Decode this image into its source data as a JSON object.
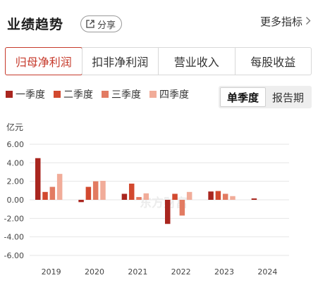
{
  "header": {
    "title": "业绩趋势",
    "share_label": "分享",
    "more_label": "更多指标"
  },
  "tabs": [
    {
      "label": "归母净利润",
      "active": true
    },
    {
      "label": "扣非净利润",
      "active": false
    },
    {
      "label": "营业收入",
      "active": false
    },
    {
      "label": "每股收益",
      "active": false
    }
  ],
  "legend": [
    {
      "label": "一季度",
      "color": "#a9261f"
    },
    {
      "label": "二季度",
      "color": "#d2492f"
    },
    {
      "label": "三季度",
      "color": "#e27b62"
    },
    {
      "label": "四季度",
      "color": "#f1ac99"
    }
  ],
  "period": {
    "single_label": "单季度",
    "report_label": "报告期",
    "active": "single"
  },
  "unit_label": "亿元",
  "watermark": "东方财富",
  "chart_data": {
    "type": "bar",
    "categories": [
      "2019",
      "2020",
      "2021",
      "2022",
      "2023",
      "2024"
    ],
    "series": [
      {
        "name": "一季度",
        "values": [
          4.5,
          -0.25,
          0.65,
          -2.6,
          0.9,
          0.15
        ]
      },
      {
        "name": "二季度",
        "values": [
          0.85,
          1.4,
          1.75,
          0.65,
          0.95,
          null
        ]
      },
      {
        "name": "三季度",
        "values": [
          1.4,
          2.0,
          0.3,
          -1.7,
          0.65,
          null
        ]
      },
      {
        "name": "四季度",
        "values": [
          2.8,
          2.05,
          0.7,
          0.85,
          0.4,
          null
        ]
      }
    ],
    "ylim": [
      -6,
      6
    ],
    "yticks": [
      "6.00",
      "4.00",
      "2.00",
      "0.00",
      "-2.00",
      "-4.00",
      "-6.00"
    ],
    "grid": true
  }
}
